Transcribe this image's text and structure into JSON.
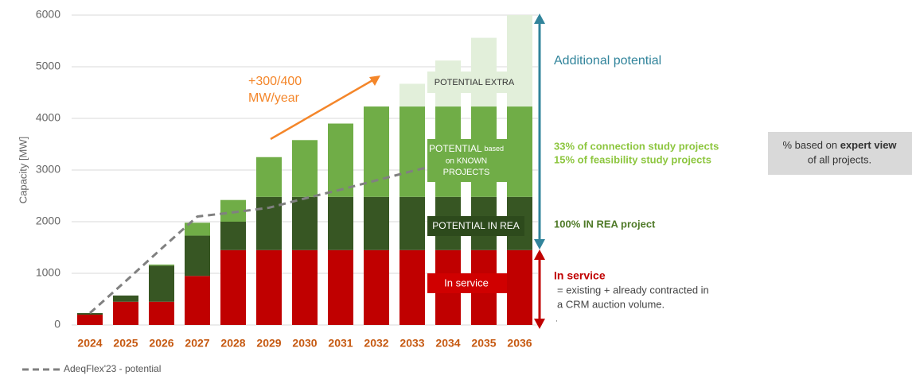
{
  "chart_data": {
    "type": "stacked_bar",
    "y_label": "Capacity [MW]",
    "categories": [
      "2024",
      "2025",
      "2026",
      "2027",
      "2028",
      "2029",
      "2030",
      "2031",
      "2032",
      "2033",
      "2034",
      "2035",
      "2036"
    ],
    "series": [
      {
        "color": "#c00000",
        "values": [
          200,
          450,
          450,
          950,
          1450,
          1450,
          1450,
          1450,
          1450,
          1450,
          1450,
          1450,
          1450
        ]
      },
      {
        "color": "#375623",
        "values": [
          30,
          120,
          700,
          780,
          550,
          1030,
          1030,
          1030,
          1030,
          1030,
          1030,
          1030,
          1030
        ]
      },
      {
        "color": "#70ad47",
        "values": [
          0,
          0,
          20,
          250,
          420,
          770,
          1100,
          1420,
          1750,
          1750,
          1750,
          1750,
          1750
        ]
      },
      {
        "color": "#e2efda",
        "values": [
          0,
          0,
          0,
          0,
          0,
          0,
          0,
          0,
          0,
          440,
          890,
          1330,
          1770
        ]
      }
    ],
    "line": {
      "name": "AdeqFlex'23 - potential",
      "color": "#808080",
      "values": [
        230,
        850,
        1480,
        2100,
        2180,
        2270,
        2450,
        2620,
        2800,
        2980,
        3150,
        null,
        null
      ]
    },
    "ylim": [
      0,
      6000
    ],
    "yticks": [
      0,
      1000,
      2000,
      3000,
      4000,
      5000,
      6000
    ],
    "grid": true,
    "annotations": [
      "+300/400",
      "MW/year",
      "POTENTIAL EXTRA",
      "POTENTIAL",
      "based",
      "on KNOWN",
      "PROJECTS",
      "POTENTIAL  IN REA",
      "In service",
      "Additional potential",
      "33%  of connection study projects",
      "15% of feasibility study projects",
      "100%  IN REA project",
      "In service",
      "= existing + already contracted in",
      "a CRM auction volume.",
      "."
    ],
    "note": [
      "% based on ",
      "expert view",
      "of all projects."
    ]
  }
}
